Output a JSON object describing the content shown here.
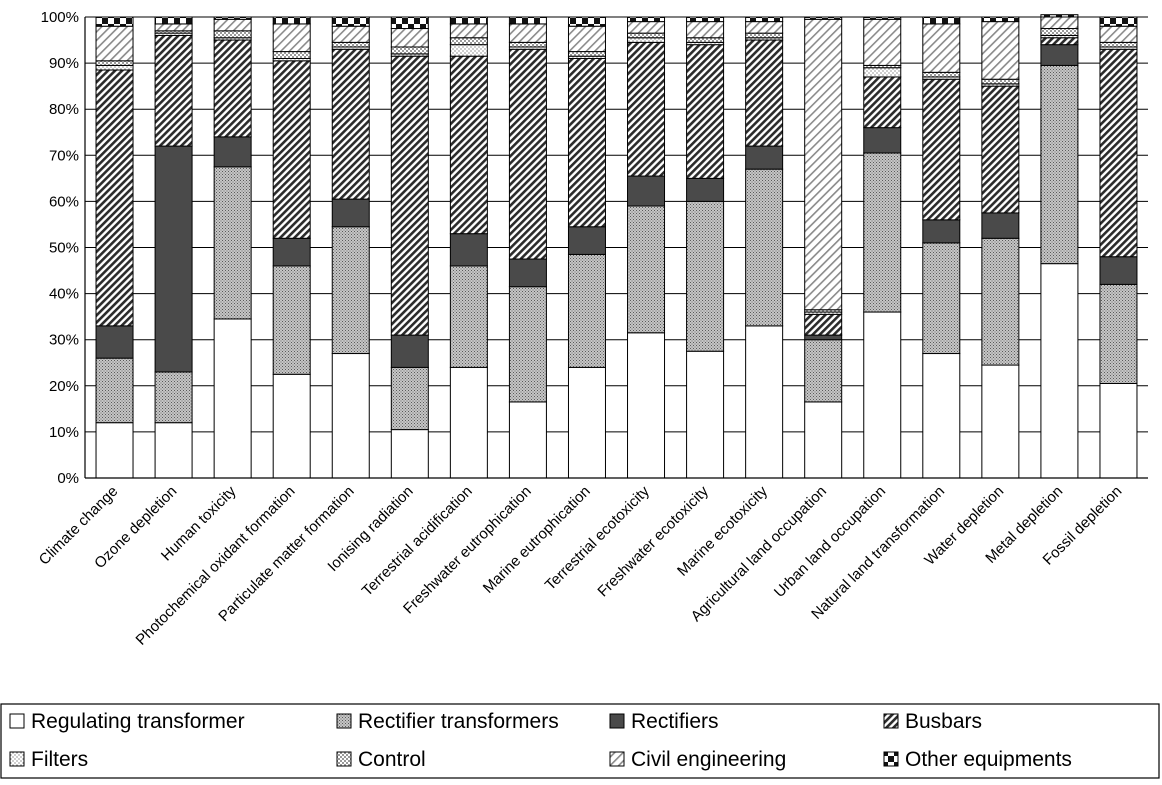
{
  "chart_data": {
    "type": "bar",
    "stacked": true,
    "percent": true,
    "title": "",
    "xlabel": "",
    "ylabel": "",
    "ylim": [
      0,
      100
    ],
    "yticks": [
      "0%",
      "10%",
      "20%",
      "30%",
      "40%",
      "50%",
      "60%",
      "70%",
      "80%",
      "90%",
      "100%"
    ],
    "grid": true,
    "legend_position": "bottom",
    "categories": [
      "Climate change",
      "Ozone depletion",
      "Human toxicity",
      "Photochemical oxidant formation",
      "Particulate matter formation",
      "Ionising radiation",
      "Terrestrial acidification",
      "Freshwater eutrophication",
      "Marine eutrophication",
      "Terrestrial ecotoxicity",
      "Freshwater ecotoxicity",
      "Marine ecotoxicity",
      "Agricultural land occupation",
      "Urban land occupation",
      "Natural land transformation",
      "Water depletion",
      "Metal depletion",
      "Fossil depletion"
    ],
    "series": [
      {
        "name": "Regulating transformer",
        "pattern": "white",
        "values": [
          12,
          12,
          34.5,
          22.5,
          27,
          10.5,
          24,
          16.5,
          24,
          31.5,
          27.5,
          33,
          16.5,
          36,
          27,
          24.5,
          46.5,
          20.5
        ]
      },
      {
        "name": "Rectifier transformers",
        "pattern": "dots",
        "values": [
          14,
          11,
          33,
          23.5,
          27.5,
          13.5,
          22,
          25,
          24.5,
          27.5,
          32.5,
          34,
          13.5,
          34.5,
          24,
          27.5,
          43,
          21.5
        ]
      },
      {
        "name": "Rectifiers",
        "pattern": "dark",
        "values": [
          7,
          49,
          6.5,
          6,
          6,
          7,
          7,
          6,
          6,
          6.5,
          5,
          5,
          1,
          5.5,
          5,
          5.5,
          4.5,
          6
        ]
      },
      {
        "name": "Busbars",
        "pattern": "hatch-dense",
        "values": [
          55.5,
          24,
          21,
          38.5,
          32.5,
          60.5,
          38.5,
          45.5,
          36.5,
          29,
          29,
          23,
          4.5,
          11,
          30.5,
          27.5,
          1.5,
          45
        ]
      },
      {
        "name": "Filters",
        "pattern": "dotted-light",
        "values": [
          1,
          0.5,
          0.5,
          0.5,
          0.5,
          0.5,
          2.5,
          0.5,
          0.5,
          1,
          0.5,
          0.5,
          0.5,
          2,
          0.5,
          0.5,
          0.5,
          0.5
        ]
      },
      {
        "name": "Control",
        "pattern": "checkered",
        "values": [
          1,
          0.5,
          1.5,
          1.5,
          1,
          1.5,
          1.5,
          1,
          1,
          1,
          1,
          1,
          0.5,
          0.5,
          1,
          1,
          1.5,
          1
        ]
      },
      {
        "name": "Civil engineering",
        "pattern": "hatch-light",
        "values": [
          7.5,
          1.5,
          2.5,
          6,
          3.5,
          4,
          3,
          4,
          5.5,
          2.5,
          3.5,
          2.5,
          63,
          10,
          10.5,
          12.5,
          2.5,
          3.5
        ]
      },
      {
        "name": "Other equipments",
        "pattern": "blocks",
        "values": [
          2,
          1.5,
          0.5,
          1.5,
          2,
          2.5,
          1.5,
          1.5,
          2,
          1,
          1,
          1,
          0.5,
          0.5,
          1.5,
          1,
          0.5,
          2
        ]
      }
    ]
  }
}
